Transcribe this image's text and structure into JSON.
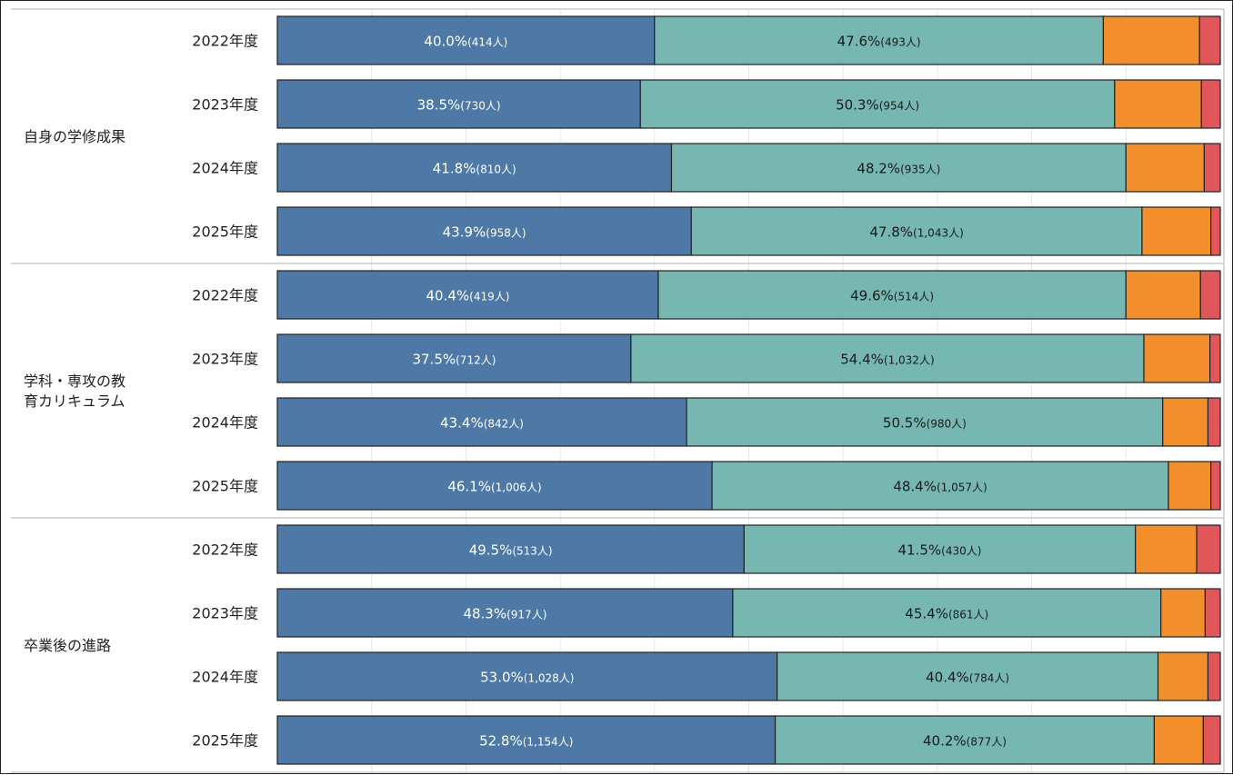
{
  "colors": {
    "seg1": "#4e79a7",
    "seg2": "#76b7b2",
    "seg3": "#f28e2b",
    "seg4": "#e15759",
    "label_on_seg1": "#ffffff",
    "label_on_seg2": "#1a1a1a",
    "border": "#222222",
    "grid": "#e6e6e6",
    "separator": "#cccccc"
  },
  "chart_data": {
    "type": "bar",
    "orientation": "horizontal",
    "stacked": "100%",
    "grid": true,
    "groups": [
      {
        "label": "自身の学修成果",
        "rows": [
          {
            "year": "2022年度",
            "segments": [
              {
                "pct": 40.0,
                "pct_text": "40.0%",
                "count_text": "(414人)"
              },
              {
                "pct": 47.6,
                "pct_text": "47.6%",
                "count_text": "(493人)"
              },
              {
                "pct": 10.2
              },
              {
                "pct": 2.2
              }
            ]
          },
          {
            "year": "2023年度",
            "segments": [
              {
                "pct": 38.5,
                "pct_text": "38.5%",
                "count_text": "(730人)"
              },
              {
                "pct": 50.3,
                "pct_text": "50.3%",
                "count_text": "(954人)"
              },
              {
                "pct": 9.2
              },
              {
                "pct": 2.0
              }
            ]
          },
          {
            "year": "2024年度",
            "segments": [
              {
                "pct": 41.8,
                "pct_text": "41.8%",
                "count_text": "(810人)"
              },
              {
                "pct": 48.2,
                "pct_text": "48.2%",
                "count_text": "(935人)"
              },
              {
                "pct": 8.3
              },
              {
                "pct": 1.7
              }
            ]
          },
          {
            "year": "2025年度",
            "segments": [
              {
                "pct": 43.9,
                "pct_text": "43.9%",
                "count_text": "(958人)"
              },
              {
                "pct": 47.8,
                "pct_text": "47.8%",
                "count_text": "(1,043人)"
              },
              {
                "pct": 7.3
              },
              {
                "pct": 1.0
              }
            ]
          }
        ]
      },
      {
        "label": "学科・専攻の教育カリキュラム",
        "label_lines": [
          "学科・専攻の教",
          "育カリキュラム"
        ],
        "rows": [
          {
            "year": "2022年度",
            "segments": [
              {
                "pct": 40.4,
                "pct_text": "40.4%",
                "count_text": "(419人)"
              },
              {
                "pct": 49.6,
                "pct_text": "49.6%",
                "count_text": "(514人)"
              },
              {
                "pct": 7.9
              },
              {
                "pct": 2.1
              }
            ]
          },
          {
            "year": "2023年度",
            "segments": [
              {
                "pct": 37.5,
                "pct_text": "37.5%",
                "count_text": "(712人)"
              },
              {
                "pct": 54.4,
                "pct_text": "54.4%",
                "count_text": "(1,032人)"
              },
              {
                "pct": 7.0
              },
              {
                "pct": 1.1
              }
            ]
          },
          {
            "year": "2024年度",
            "segments": [
              {
                "pct": 43.4,
                "pct_text": "43.4%",
                "count_text": "(842人)"
              },
              {
                "pct": 50.5,
                "pct_text": "50.5%",
                "count_text": "(980人)"
              },
              {
                "pct": 4.8
              },
              {
                "pct": 1.3
              }
            ]
          },
          {
            "year": "2025年度",
            "segments": [
              {
                "pct": 46.1,
                "pct_text": "46.1%",
                "count_text": "(1,006人)"
              },
              {
                "pct": 48.4,
                "pct_text": "48.4%",
                "count_text": "(1,057人)"
              },
              {
                "pct": 4.5
              },
              {
                "pct": 1.0
              }
            ]
          }
        ]
      },
      {
        "label": "卒業後の進路",
        "rows": [
          {
            "year": "2022年度",
            "segments": [
              {
                "pct": 49.5,
                "pct_text": "49.5%",
                "count_text": "(513人)"
              },
              {
                "pct": 41.5,
                "pct_text": "41.5%",
                "count_text": "(430人)"
              },
              {
                "pct": 6.5
              },
              {
                "pct": 2.5
              }
            ]
          },
          {
            "year": "2023年度",
            "segments": [
              {
                "pct": 48.3,
                "pct_text": "48.3%",
                "count_text": "(917人)"
              },
              {
                "pct": 45.4,
                "pct_text": "45.4%",
                "count_text": "(861人)"
              },
              {
                "pct": 4.7
              },
              {
                "pct": 1.6
              }
            ]
          },
          {
            "year": "2024年度",
            "segments": [
              {
                "pct": 53.0,
                "pct_text": "53.0%",
                "count_text": "(1,028人)"
              },
              {
                "pct": 40.4,
                "pct_text": "40.4%",
                "count_text": "(784人)"
              },
              {
                "pct": 5.3
              },
              {
                "pct": 1.3
              }
            ]
          },
          {
            "year": "2025年度",
            "segments": [
              {
                "pct": 52.8,
                "pct_text": "52.8%",
                "count_text": "(1,154人)"
              },
              {
                "pct": 40.2,
                "pct_text": "40.2%",
                "count_text": "(877人)"
              },
              {
                "pct": 5.2
              },
              {
                "pct": 1.8
              }
            ]
          }
        ]
      }
    ]
  }
}
